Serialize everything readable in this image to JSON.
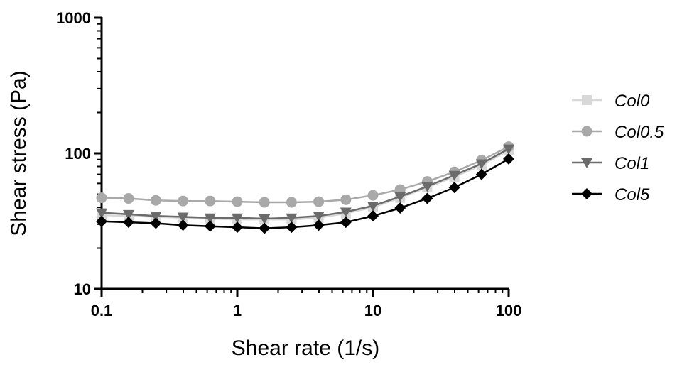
{
  "chart_data": {
    "type": "line",
    "title": "",
    "xlabel": "Shear rate (1/s)",
    "ylabel": "Shear stress (Pa)",
    "xscale": "log",
    "yscale": "log",
    "xlim": [
      0.1,
      100
    ],
    "ylim": [
      10,
      1000
    ],
    "x_ticks": [
      "0.1",
      "1",
      "10",
      "100"
    ],
    "y_ticks": [
      "10",
      "100",
      "1000"
    ],
    "grid": false,
    "legend_position": "right",
    "x": [
      0.1,
      0.158,
      0.251,
      0.398,
      0.631,
      1.0,
      1.585,
      2.512,
      3.981,
      6.31,
      10.0,
      15.85,
      25.12,
      39.81,
      63.1,
      100.0
    ],
    "series": [
      {
        "name": "Col0",
        "color": "#d8d8d8",
        "marker": "square",
        "values": [
          35,
          34.5,
          34,
          33.5,
          33,
          32.5,
          32.5,
          32.5,
          33.5,
          36,
          40,
          47,
          56,
          67,
          82,
          105
        ]
      },
      {
        "name": "Col0.5",
        "color": "#a9a9a9",
        "marker": "circle",
        "values": [
          47,
          46.5,
          45,
          44.5,
          44.5,
          44,
          43.5,
          43.5,
          44,
          45.5,
          49,
          54,
          62,
          73,
          89,
          112
        ]
      },
      {
        "name": "Col1",
        "color": "#6b6b6b",
        "marker": "triangle-down",
        "values": [
          36.5,
          35.5,
          34.5,
          34,
          33.5,
          33.5,
          33,
          33.5,
          34.5,
          37,
          41,
          48,
          57,
          69,
          84,
          108
        ]
      },
      {
        "name": "Col5",
        "color": "#000000",
        "marker": "diamond",
        "values": [
          31.5,
          31,
          30.5,
          29.5,
          29,
          28.5,
          28,
          28.5,
          29.5,
          31,
          34.5,
          39.5,
          46.5,
          56,
          70,
          91
        ]
      }
    ]
  }
}
